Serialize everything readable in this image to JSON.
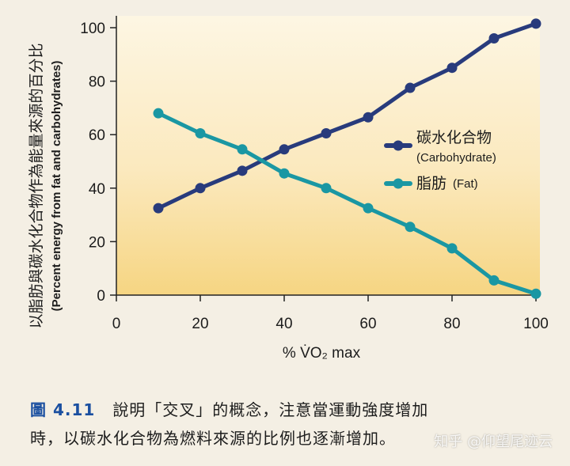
{
  "chart_data": {
    "type": "line",
    "xlabel": "% V̇O₂ max",
    "ylabel_zh": "以脂肪與碳水化合物作為能量來源的百分比",
    "ylabel_en": "(Percent energy from fat and carbohydrates)",
    "xlim": [
      0,
      100
    ],
    "ylim": [
      0,
      100
    ],
    "xticks": [
      "0",
      "20",
      "40",
      "60",
      "80",
      "100"
    ],
    "yticks": [
      "0",
      "20",
      "40",
      "60",
      "80",
      "100"
    ],
    "x": [
      10,
      20,
      30,
      40,
      50,
      60,
      70,
      80,
      90,
      100
    ],
    "series": [
      {
        "name": "碳水化合物",
        "name_en": "(Carbohydrate)",
        "color": "#283b7c",
        "values": [
          32.5,
          40,
          46.5,
          54.5,
          60.5,
          66.5,
          77.5,
          85,
          96,
          101.5
        ]
      },
      {
        "name": "脂肪",
        "name_en": "(Fat)",
        "color": "#1a97a3",
        "values": [
          68,
          60.5,
          54.5,
          45.5,
          40,
          32.5,
          25.5,
          17.5,
          5.5,
          0.5
        ]
      }
    ],
    "legend_position": "right"
  },
  "caption": {
    "figure_number": "圖 4.11",
    "line1": "說明「交叉」的概念，注意當運動強度增加",
    "line2": "時，以碳水化合物為燃料來源的比例也逐漸增加。"
  },
  "watermark": "知乎 @仰望尾迹云"
}
